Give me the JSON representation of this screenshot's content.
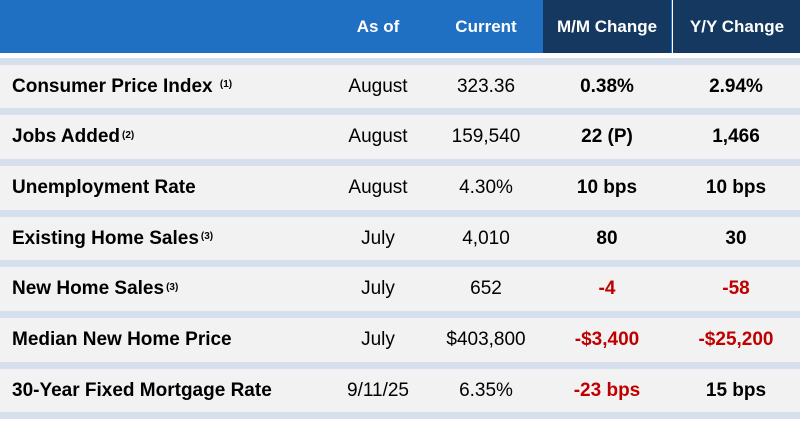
{
  "header": {
    "as_of": "As of",
    "current": "Current",
    "mm_change": "M/M Change",
    "yy_change": "Y/Y Change"
  },
  "colors": {
    "header_blue": "#1f6fc2",
    "header_dark": "#14385f",
    "row_bg": "#f2f2f2",
    "band": "#d5e0ec",
    "negative": "#c00000"
  },
  "rows": [
    {
      "metric": "Consumer Price Index",
      "note": "(1)",
      "as_of": "August",
      "current": "323.36",
      "mm": "0.38%",
      "yy": "2.94%",
      "mm_negative": false,
      "yy_negative": false
    },
    {
      "metric": "Jobs Added",
      "note": "(2)",
      "as_of": "August",
      "current": "159,540",
      "mm": "22 (P)",
      "yy": "1,466",
      "mm_negative": false,
      "yy_negative": false
    },
    {
      "metric": "Unemployment Rate",
      "note": "",
      "as_of": "August",
      "current": "4.30%",
      "mm": "10 bps",
      "yy": "10 bps",
      "mm_negative": false,
      "yy_negative": false
    },
    {
      "metric": "Existing Home Sales",
      "note": "(3)",
      "as_of": "July",
      "current": "4,010",
      "mm": "80",
      "yy": "30",
      "mm_negative": false,
      "yy_negative": false
    },
    {
      "metric": "New Home Sales",
      "note": "(3)",
      "as_of": "July",
      "current": "652",
      "mm": "-4",
      "yy": "-58",
      "mm_negative": true,
      "yy_negative": true
    },
    {
      "metric": "Median New Home Price",
      "note": "",
      "as_of": "July",
      "current": "$403,800",
      "mm": "-$3,400",
      "yy": "-$25,200",
      "mm_negative": true,
      "yy_negative": true
    },
    {
      "metric": "30-Year Fixed Mortgage Rate",
      "note": "",
      "as_of": "9/11/25",
      "current": "6.35%",
      "mm": "-23 bps",
      "yy": "15 bps",
      "mm_negative": true,
      "yy_negative": false
    }
  ]
}
